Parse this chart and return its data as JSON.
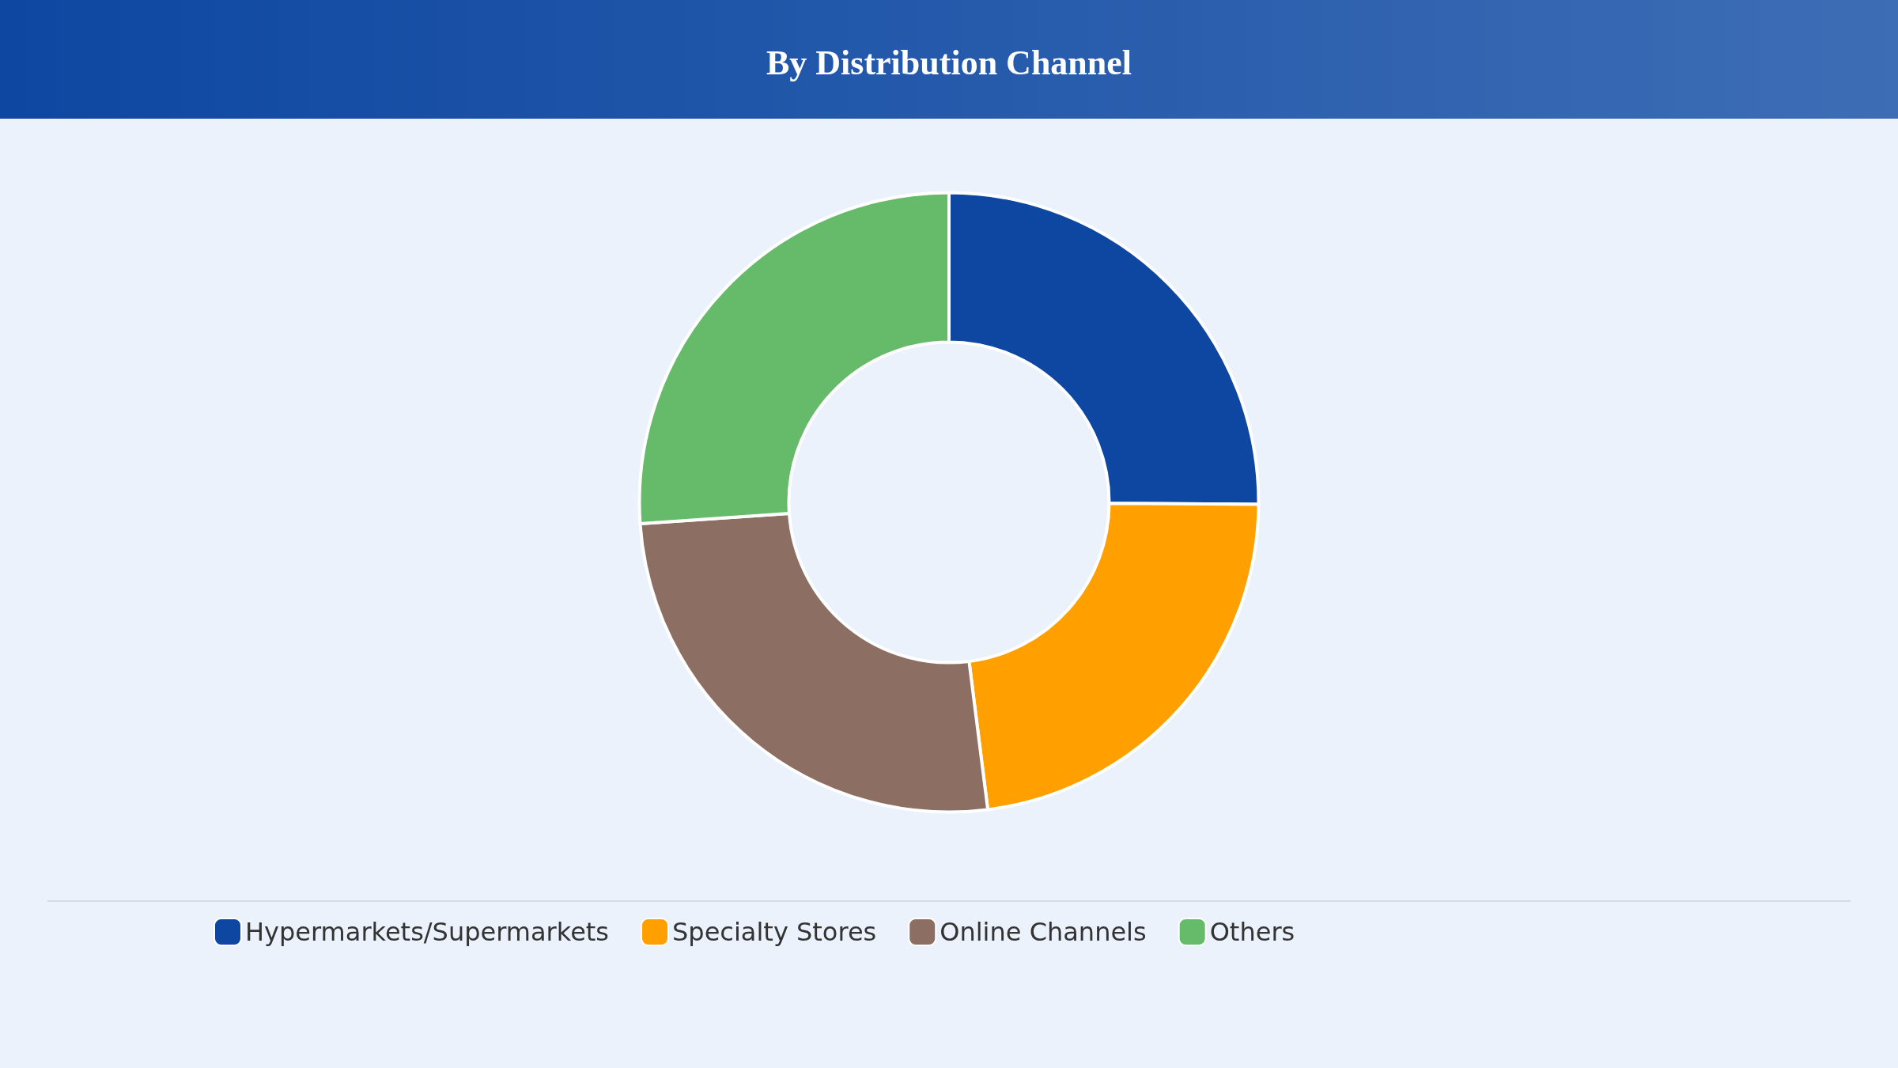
{
  "chart_data": {
    "type": "donut",
    "title": "By Distribution Channel",
    "categories": [
      "Hypermarkets/Supermarkets",
      "Specialty Stores",
      "Online Channels",
      "Others"
    ],
    "values": [
      25.1,
      22.9,
      25.9,
      26.1
    ],
    "colors": [
      "#0d47a1",
      "#ffa000",
      "#8d6e63",
      "#66bb6a"
    ],
    "legend": "bottom"
  }
}
